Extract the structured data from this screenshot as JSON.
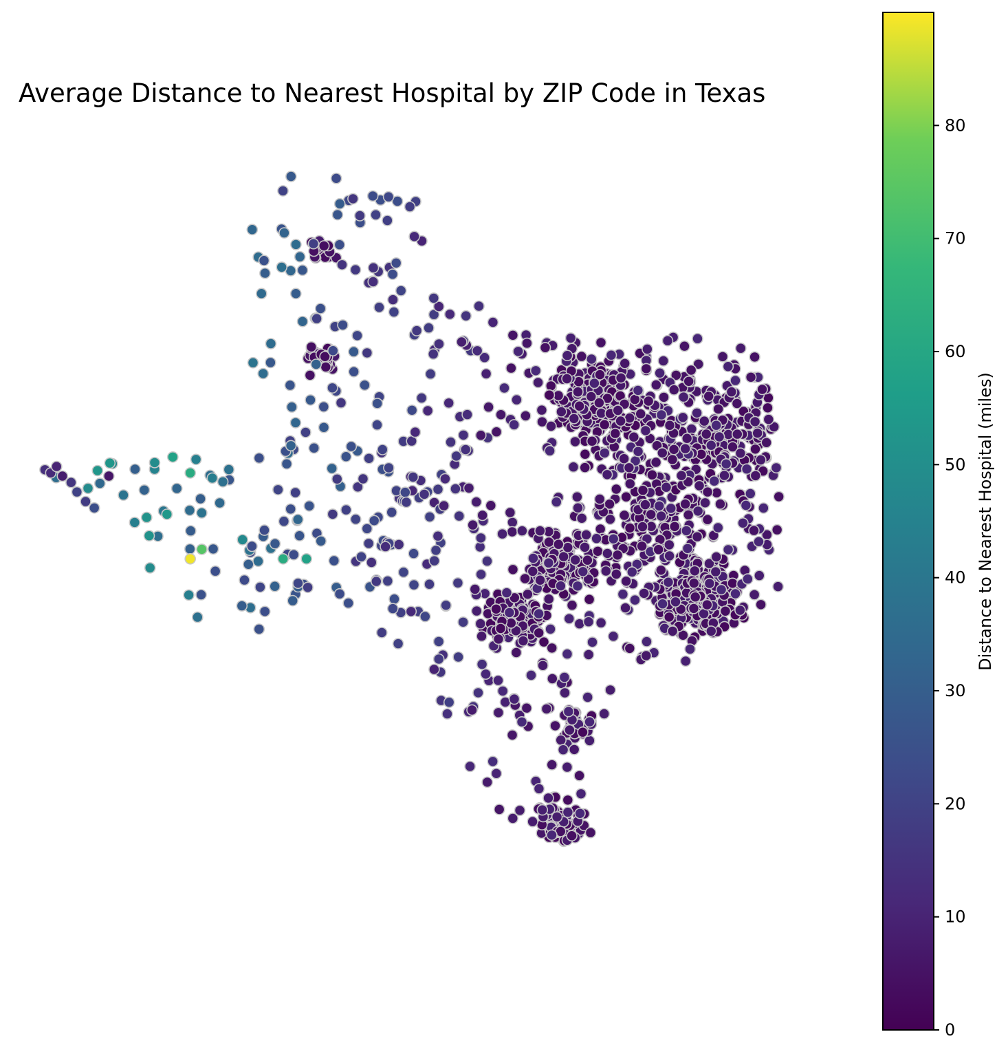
{
  "chart_data": {
    "type": "scatter",
    "title": "Average Distance to Nearest Hospital by ZIP Code in Texas",
    "colorbar": {
      "label": "Distance to Nearest Hospital (miles)",
      "range": [
        0,
        90
      ],
      "ticks": [
        0,
        10,
        20,
        30,
        40,
        50,
        60,
        70,
        80
      ],
      "colormap": "viridis"
    },
    "axes_visible": false,
    "marker_edge_color": "#c8c8c8",
    "points": [
      {
        "lon": -106.6,
        "lat": 31.8,
        "distance": 14
      },
      {
        "lon": -106.5,
        "lat": 31.75,
        "distance": 12
      },
      {
        "lon": -106.4,
        "lat": 31.85,
        "distance": 10
      },
      {
        "lon": -106.3,
        "lat": 31.7,
        "distance": 8
      },
      {
        "lon": -106.15,
        "lat": 31.6,
        "distance": 16
      },
      {
        "lon": -106.05,
        "lat": 31.45,
        "distance": 20
      },
      {
        "lon": -105.9,
        "lat": 31.3,
        "distance": 18
      },
      {
        "lon": -105.75,
        "lat": 31.2,
        "distance": 24
      },
      {
        "lon": -105.5,
        "lat": 31.7,
        "distance": 6
      },
      {
        "lon": -104.1,
        "lat": 30.4,
        "distance": 89
      },
      {
        "lon": -103.9,
        "lat": 30.55,
        "distance": 74
      },
      {
        "lon": -104.85,
        "lat": 31.05,
        "distance": 52
      },
      {
        "lon": -104.5,
        "lat": 31.1,
        "distance": 54
      },
      {
        "lon": -104.1,
        "lat": 31.75,
        "distance": 62
      },
      {
        "lon": -104.4,
        "lat": 32.0,
        "distance": 58
      },
      {
        "lon": -103.2,
        "lat": 30.7,
        "distance": 48
      },
      {
        "lon": -102.5,
        "lat": 30.4,
        "distance": 62
      },
      {
        "lon": -102.1,
        "lat": 30.4,
        "distance": 58
      }
    ]
  }
}
